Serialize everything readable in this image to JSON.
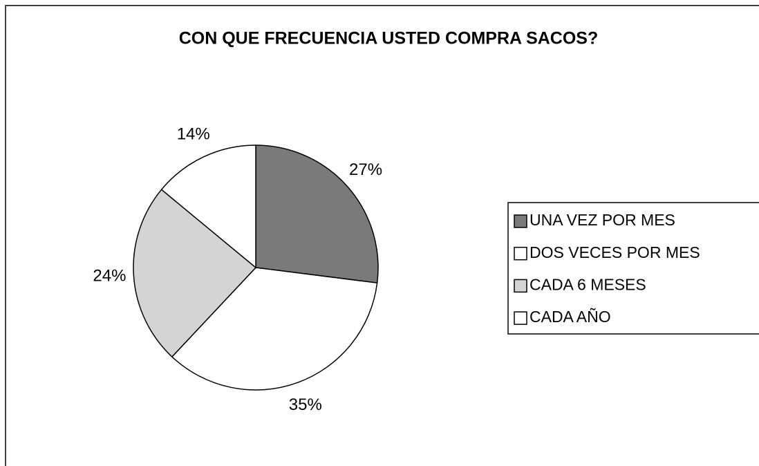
{
  "chart_data": {
    "type": "pie",
    "title": "CON QUE FRECUENCIA USTED COMPRA SACOS?",
    "categories": [
      "UNA VEZ POR MES",
      "DOS VECES POR MES",
      "CADA 6 MESES",
      "CADA AÑO"
    ],
    "values": [
      27,
      35,
      24,
      14
    ],
    "value_labels": [
      "27%",
      "35%",
      "24%",
      "14%"
    ],
    "colors": [
      "#7a7a7a",
      "#ffffff",
      "#d4d4d4",
      "#ffffff"
    ],
    "legend": "right"
  }
}
